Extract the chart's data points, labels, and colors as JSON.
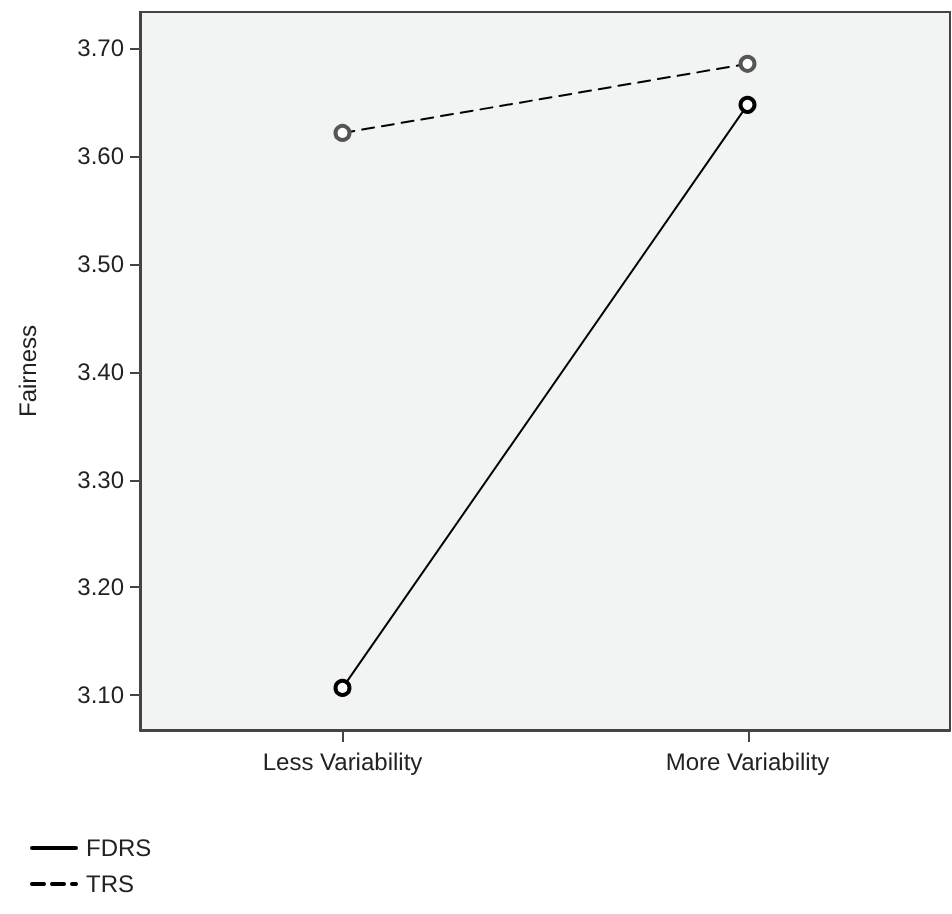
{
  "chart_data": {
    "type": "line",
    "ylabel": "Fairness",
    "categories": [
      "Less Variability",
      "More Variability"
    ],
    "series": [
      {
        "name": "FDRS",
        "color": "#000000",
        "line_style": "solid",
        "values": [
          3.107,
          3.647
        ]
      },
      {
        "name": "TRS",
        "color": "#555555",
        "line_style": "dashed",
        "values": [
          3.621,
          3.685
        ]
      }
    ],
    "ylim": [
      3.068,
      3.733
    ],
    "yticks": [
      {
        "value": 3.1,
        "label": "3.10"
      },
      {
        "value": 3.2,
        "label": "3.20"
      },
      {
        "value": 3.3,
        "label": "3.30"
      },
      {
        "value": 3.4,
        "label": "3.40"
      },
      {
        "value": 3.5,
        "label": "3.50"
      },
      {
        "value": 3.6,
        "label": "3.60"
      },
      {
        "value": 3.7,
        "label": "3.70"
      }
    ],
    "grid": false,
    "legend": "bottom left",
    "marker": "circle"
  }
}
